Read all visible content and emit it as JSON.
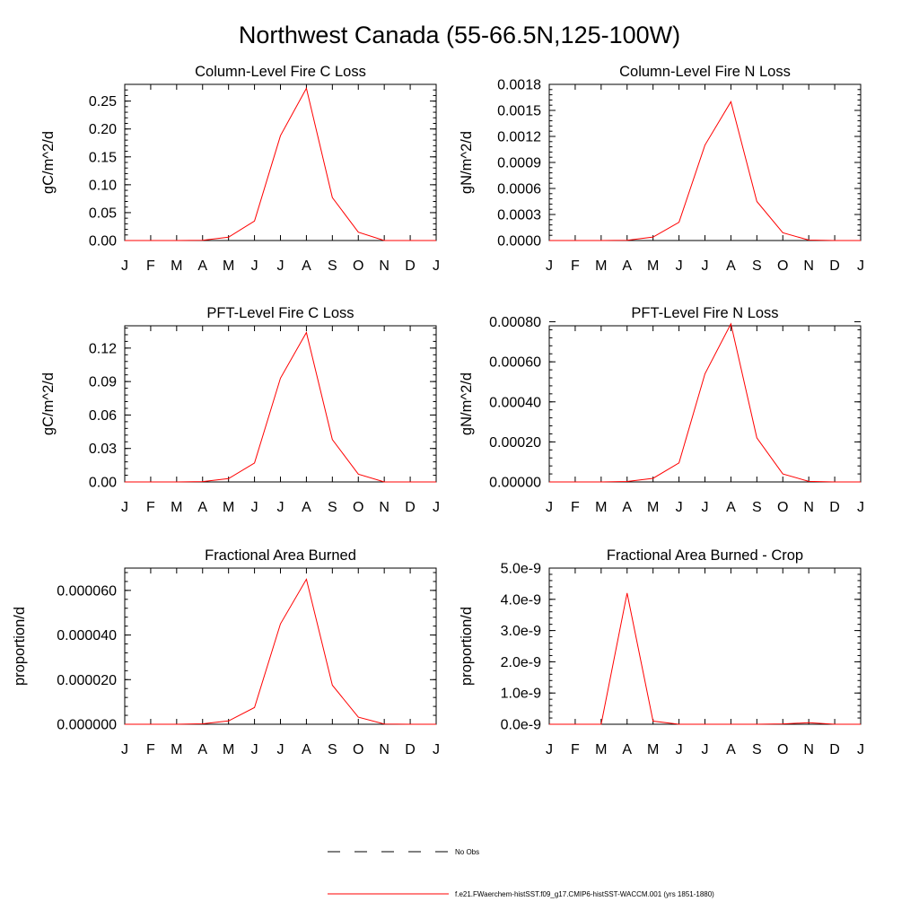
{
  "figure": {
    "title": "Northwest Canada (55-66.5N,125-100W)"
  },
  "chart_data": [
    {
      "type": "line",
      "title": "Column-Level Fire C Loss",
      "ylabel": "gC/m^2/d",
      "xlabel": "",
      "x": [
        "J",
        "F",
        "M",
        "A",
        "M",
        "J",
        "J",
        "A",
        "S",
        "O",
        "N",
        "D",
        "J"
      ],
      "ylim": [
        0,
        0.28
      ],
      "yticks": [
        "0.00",
        "0.05",
        "0.10",
        "0.15",
        "0.20",
        "0.25"
      ],
      "yticks_values": [
        0,
        0.05,
        0.1,
        0.15,
        0.2,
        0.25
      ],
      "series": [
        {
          "name": "f.e21.FWaerchem-histSST.f09_g17.CMIP6-histSST-WACCM.001 (yrs 1851-1880)",
          "color": "#ff0000",
          "values": [
            0,
            0,
            0,
            0.0005,
            0.006,
            0.035,
            0.188,
            0.273,
            0.077,
            0.015,
            0,
            0,
            0
          ]
        }
      ]
    },
    {
      "type": "line",
      "title": "Column-Level Fire N Loss",
      "ylabel": "gN/m^2/d",
      "xlabel": "",
      "x": [
        "J",
        "F",
        "M",
        "A",
        "M",
        "J",
        "J",
        "A",
        "S",
        "O",
        "N",
        "D",
        "J"
      ],
      "ylim": [
        0,
        0.0018
      ],
      "yticks": [
        "0.0000",
        "0.0003",
        "0.0006",
        "0.0009",
        "0.0012",
        "0.0015",
        "0.0018"
      ],
      "yticks_values": [
        0,
        0.0003,
        0.0006,
        0.0009,
        0.0012,
        0.0015,
        0.0018
      ],
      "series": [
        {
          "name": "f.e21.FWaerchem-histSST.f09_g17.CMIP6-histSST-WACCM.001 (yrs 1851-1880)",
          "color": "#ff0000",
          "values": [
            0,
            0,
            0,
            3e-06,
            4e-05,
            0.00021,
            0.0011,
            0.0016,
            0.00045,
            9e-05,
            5e-06,
            0,
            0
          ]
        }
      ]
    },
    {
      "type": "line",
      "title": "PFT-Level Fire C Loss",
      "ylabel": "gC/m^2/d",
      "xlabel": "",
      "x": [
        "J",
        "F",
        "M",
        "A",
        "M",
        "J",
        "J",
        "A",
        "S",
        "O",
        "N",
        "D",
        "J"
      ],
      "ylim": [
        0,
        0.14
      ],
      "yticks": [
        "0.00",
        "0.03",
        "0.06",
        "0.09",
        "0.12"
      ],
      "yticks_values": [
        0,
        0.03,
        0.06,
        0.09,
        0.12
      ],
      "series": [
        {
          "name": "f.e21.FWaerchem-histSST.f09_g17.CMIP6-histSST-WACCM.001 (yrs 1851-1880)",
          "color": "#ff0000",
          "values": [
            0,
            0,
            0,
            0.0003,
            0.003,
            0.017,
            0.093,
            0.134,
            0.038,
            0.007,
            0,
            0,
            0
          ]
        }
      ]
    },
    {
      "type": "line",
      "title": "PFT-Level Fire N Loss",
      "ylabel": "gN/m^2/d",
      "xlabel": "",
      "x": [
        "J",
        "F",
        "M",
        "A",
        "M",
        "J",
        "J",
        "A",
        "S",
        "O",
        "N",
        "D",
        "J"
      ],
      "ylim": [
        0,
        0.00078
      ],
      "yticks": [
        "0.00000",
        "0.00020",
        "0.00040",
        "0.00060",
        "0.00080"
      ],
      "yticks_values": [
        0,
        0.0002,
        0.0004,
        0.0006,
        0.0008
      ],
      "series": [
        {
          "name": "f.e21.FWaerchem-histSST.f09_g17.CMIP6-histSST-WACCM.001 (yrs 1851-1880)",
          "color": "#ff0000",
          "values": [
            0,
            0,
            0,
            2e-06,
            1.8e-05,
            9.5e-05,
            0.00054,
            0.00079,
            0.00022,
            4e-05,
            3e-06,
            0,
            0
          ]
        }
      ]
    },
    {
      "type": "line",
      "title": "Fractional Area Burned",
      "ylabel": "proportion/d",
      "xlabel": "",
      "x": [
        "J",
        "F",
        "M",
        "A",
        "M",
        "J",
        "J",
        "A",
        "S",
        "O",
        "N",
        "D",
        "J"
      ],
      "ylim": [
        0,
        7e-05
      ],
      "yticks": [
        "0.000000",
        "0.000020",
        "0.000040",
        "0.000060"
      ],
      "yticks_values": [
        0,
        2e-05,
        4e-05,
        6e-05
      ],
      "series": [
        {
          "name": "f.e21.FWaerchem-histSST.f09_g17.CMIP6-histSST-WACCM.001 (yrs 1851-1880)",
          "color": "#ff0000",
          "values": [
            0,
            0,
            0,
            2e-07,
            1.5e-06,
            7.5e-06,
            4.5e-05,
            6.5e-05,
            1.75e-05,
            3.2e-06,
            1e-07,
            0,
            0
          ]
        }
      ]
    },
    {
      "type": "line",
      "title": "Fractional Area Burned - Crop",
      "ylabel": "proportion/d",
      "xlabel": "",
      "x": [
        "J",
        "F",
        "M",
        "A",
        "M",
        "J",
        "J",
        "A",
        "S",
        "O",
        "N",
        "D",
        "J"
      ],
      "ylim": [
        0,
        5e-09
      ],
      "yticks": [
        "0.0e-9",
        "1.0e-9",
        "2.0e-9",
        "3.0e-9",
        "4.0e-9",
        "5.0e-9"
      ],
      "yticks_values": [
        0,
        1e-09,
        2e-09,
        3e-09,
        4e-09,
        5e-09
      ],
      "series": [
        {
          "name": "f.e21.FWaerchem-histSST.f09_g17.CMIP6-histSST-WACCM.001 (yrs 1851-1880)",
          "color": "#ff0000",
          "values": [
            0,
            0,
            0,
            4.2e-09,
            1e-10,
            0.0,
            0.0,
            0.0,
            0.0,
            1e-11,
            5e-11,
            0,
            0
          ]
        }
      ]
    }
  ],
  "legend": {
    "items": [
      {
        "label": "No Obs",
        "style": "dashed",
        "color": "#000000"
      },
      {
        "label": "f.e21.FWaerchem-histSST.f09_g17.CMIP6-histSST-WACCM.001 (yrs 1851-1880)",
        "style": "solid",
        "color": "#ff0000"
      }
    ]
  }
}
